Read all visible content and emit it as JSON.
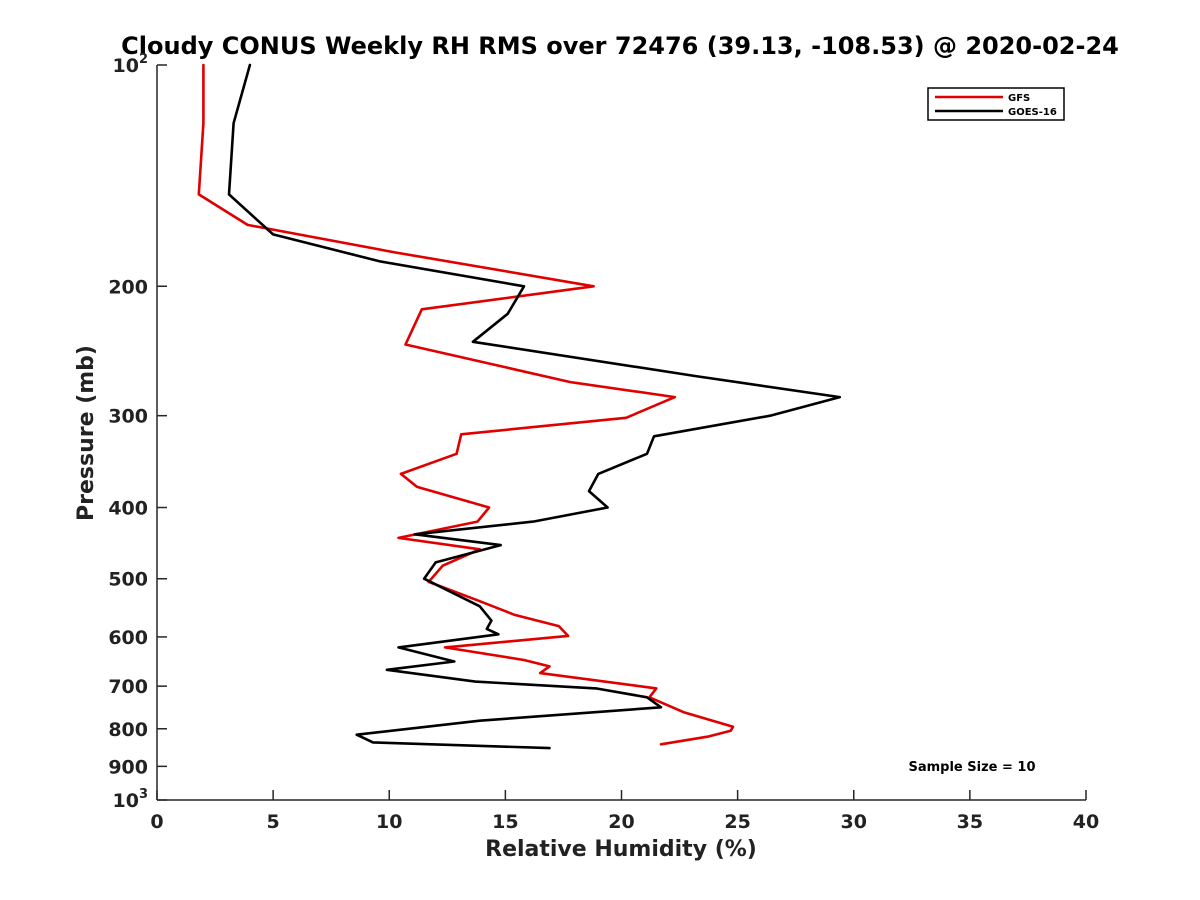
{
  "chart_data": {
    "type": "line",
    "title": "Cloudy CONUS Weekly RH RMS over 72476 (39.13, -108.53) @ 2020-02-24",
    "xlabel": "Relative Humidity (%)",
    "ylabel": "Pressure (mb)",
    "xlim": [
      0,
      40
    ],
    "ylim": [
      1000,
      100
    ],
    "yscale": "log",
    "y_reversed": true,
    "grid": false,
    "legend_position": "top-right",
    "annotation": "Sample Size = 10",
    "x_ticks": [
      {
        "value": 0,
        "label": "0"
      },
      {
        "value": 5,
        "label": "5"
      },
      {
        "value": 10,
        "label": "10"
      },
      {
        "value": 15,
        "label": "15"
      },
      {
        "value": 20,
        "label": "20"
      },
      {
        "value": 25,
        "label": "25"
      },
      {
        "value": 30,
        "label": "30"
      },
      {
        "value": 35,
        "label": "35"
      },
      {
        "value": 40,
        "label": "40"
      }
    ],
    "y_ticks": [
      {
        "value": 100,
        "base": "10",
        "exp": "2"
      },
      {
        "value": 200,
        "label": "200"
      },
      {
        "value": 300,
        "label": "300"
      },
      {
        "value": 400,
        "label": "400"
      },
      {
        "value": 500,
        "label": "500"
      },
      {
        "value": 600,
        "label": "600"
      },
      {
        "value": 700,
        "label": "700"
      },
      {
        "value": 800,
        "label": "800"
      },
      {
        "value": 900,
        "label": "900"
      },
      {
        "value": 1000,
        "base": "10",
        "exp": "3"
      }
    ],
    "series": [
      {
        "name": "GFS",
        "color": "#e00000",
        "points": [
          [
            2.0,
            100
          ],
          [
            2.0,
            120
          ],
          [
            1.8,
            150
          ],
          [
            3.9,
            165
          ],
          [
            10.3,
            180
          ],
          [
            18.8,
            200
          ],
          [
            11.4,
            215
          ],
          [
            10.7,
            240
          ],
          [
            17.8,
            270
          ],
          [
            22.3,
            283
          ],
          [
            20.2,
            302
          ],
          [
            13.1,
            318
          ],
          [
            12.9,
            338
          ],
          [
            10.5,
            360
          ],
          [
            11.2,
            375
          ],
          [
            14.3,
            400
          ],
          [
            13.8,
            418
          ],
          [
            10.4,
            440
          ],
          [
            13.9,
            456
          ],
          [
            12.3,
            480
          ],
          [
            11.7,
            505
          ],
          [
            13.8,
            535
          ],
          [
            15.4,
            560
          ],
          [
            17.3,
            580
          ],
          [
            17.7,
            598
          ],
          [
            12.4,
            620
          ],
          [
            15.8,
            645
          ],
          [
            16.9,
            658
          ],
          [
            16.5,
            672
          ],
          [
            21.5,
            705
          ],
          [
            21.2,
            725
          ],
          [
            22.7,
            760
          ],
          [
            24.8,
            795
          ],
          [
            24.7,
            805
          ],
          [
            23.7,
            820
          ],
          [
            21.7,
            840
          ]
        ]
      },
      {
        "name": "GOES-16",
        "color": "#000000",
        "points": [
          [
            4.0,
            100
          ],
          [
            3.3,
            120
          ],
          [
            3.1,
            150
          ],
          [
            5.0,
            170
          ],
          [
            9.6,
            185
          ],
          [
            15.8,
            200
          ],
          [
            15.1,
            218
          ],
          [
            13.6,
            238
          ],
          [
            23.2,
            265
          ],
          [
            29.4,
            283
          ],
          [
            26.4,
            300
          ],
          [
            21.4,
            320
          ],
          [
            21.1,
            338
          ],
          [
            19.0,
            360
          ],
          [
            18.6,
            380
          ],
          [
            19.4,
            400
          ],
          [
            16.2,
            418
          ],
          [
            11.1,
            435
          ],
          [
            14.8,
            450
          ],
          [
            12.0,
            475
          ],
          [
            11.5,
            500
          ],
          [
            13.9,
            545
          ],
          [
            14.4,
            570
          ],
          [
            14.2,
            585
          ],
          [
            14.7,
            595
          ],
          [
            10.4,
            620
          ],
          [
            12.8,
            648
          ],
          [
            9.9,
            665
          ],
          [
            13.7,
            690
          ],
          [
            18.9,
            705
          ],
          [
            21.1,
            725
          ],
          [
            21.7,
            748
          ],
          [
            13.9,
            780
          ],
          [
            8.6,
            815
          ],
          [
            9.3,
            835
          ],
          [
            16.9,
            850
          ]
        ]
      }
    ]
  }
}
